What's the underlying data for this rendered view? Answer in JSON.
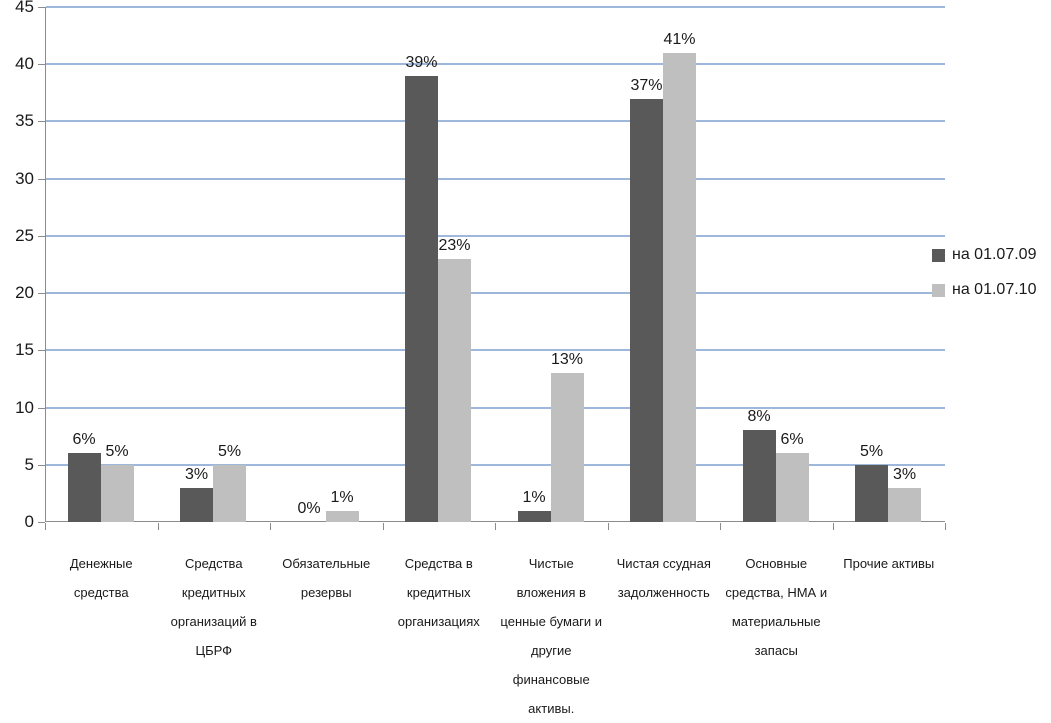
{
  "chart_data": {
    "type": "bar",
    "title": "",
    "categories": [
      "Денежные средства",
      "Средства кредитных организаций в ЦБРФ",
      "Обязательные резервы",
      "Средства в кредитных организациях",
      "Чистые вложения в ценные бумаги и другие финансовые активы.",
      "Чистая ссудная задолженность",
      "Основные средства, НМА и материальные запасы",
      "Прочие активы"
    ],
    "category_lines": [
      [
        "Денежные",
        "средства"
      ],
      [
        "Средства",
        "кредитных",
        "организаций в",
        "ЦБРФ"
      ],
      [
        "Обязательные",
        "резервы"
      ],
      [
        "Средства в",
        "кредитных",
        "организациях"
      ],
      [
        "Чистые",
        "вложения в",
        "ценные бумаги и",
        "другие",
        "финансовые",
        "активы."
      ],
      [
        "Чистая ссудная",
        "задолженность"
      ],
      [
        "Основные",
        "средства, НМА и",
        "материальные",
        "запасы"
      ],
      [
        "Прочие активы"
      ]
    ],
    "series": [
      {
        "name": "на 01.07.09",
        "color": "#595959",
        "values": [
          6,
          3,
          0,
          39,
          1,
          37,
          8,
          5
        ],
        "data_labels": [
          "6%",
          "3%",
          "0%",
          "39%",
          "1%",
          "37%",
          "8%",
          "5%"
        ]
      },
      {
        "name": "на 01.07.10",
        "color": "#bfbfbf",
        "values": [
          5,
          5,
          1,
          23,
          13,
          41,
          6,
          3
        ],
        "data_labels": [
          "5%",
          "5%",
          "1%",
          "23%",
          "13%",
          "41%",
          "6%",
          "3%"
        ]
      }
    ],
    "y_axis": {
      "min": 0,
      "max": 45,
      "step": 5,
      "tick_labels": [
        "0",
        "5",
        "10",
        "15",
        "20",
        "25",
        "30",
        "35",
        "40",
        "45"
      ]
    },
    "legend": {
      "position": "right"
    },
    "grid": true,
    "colors": {
      "gridline": "#9db8da",
      "axis": "#8c8c8c",
      "text": "#1a1a1a",
      "background": "#ffffff"
    }
  }
}
